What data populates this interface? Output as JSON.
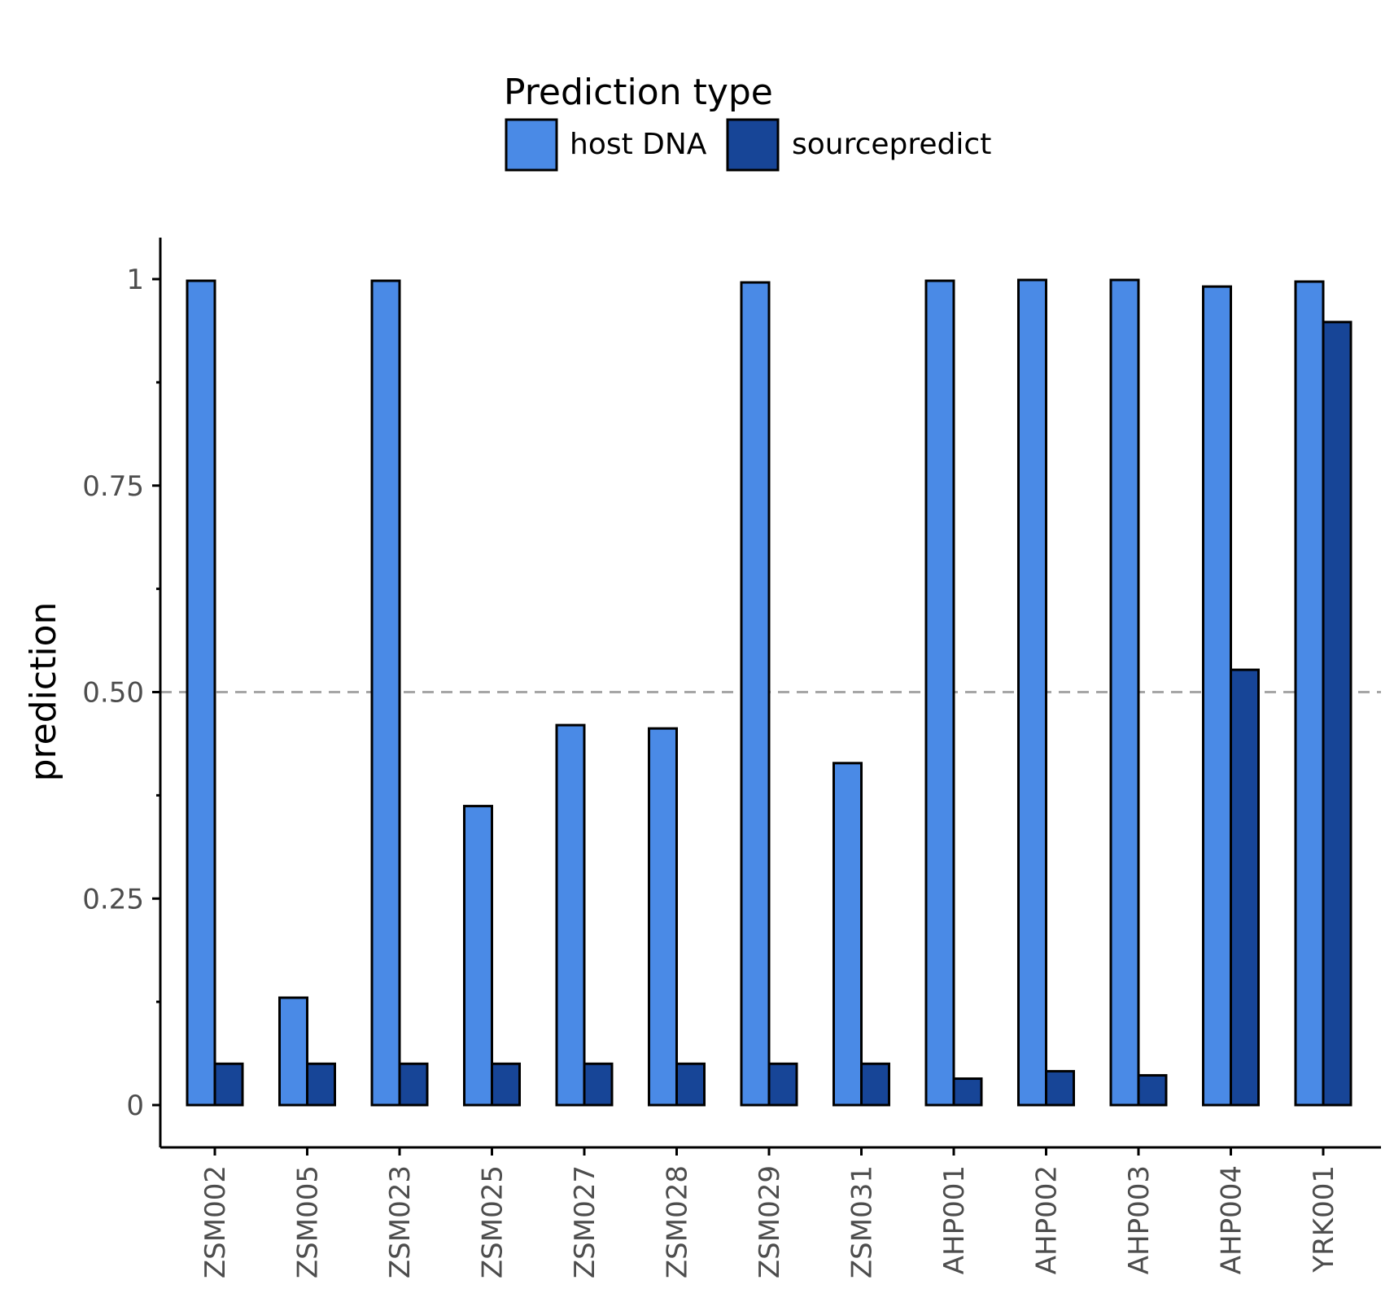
{
  "chart_data": {
    "type": "bar",
    "categories": [
      "ZSM002",
      "ZSM005",
      "ZSM023",
      "ZSM025",
      "ZSM027",
      "ZSM028",
      "ZSM029",
      "ZSM031",
      "AHP001",
      "AHP002",
      "AHP003",
      "AHP004",
      "YRK001"
    ],
    "series": [
      {
        "name": "host DNA",
        "color": "#4a8ae6",
        "values": [
          0.998,
          0.13,
          0.998,
          0.362,
          0.46,
          0.456,
          0.996,
          0.414,
          0.998,
          0.999,
          0.999,
          0.991,
          0.997
        ]
      },
      {
        "name": "sourcepredict",
        "color": "#174597",
        "values": [
          0.05,
          0.05,
          0.05,
          0.05,
          0.05,
          0.05,
          0.05,
          0.05,
          0.032,
          0.041,
          0.036,
          0.527,
          0.948
        ]
      }
    ],
    "legend_title": "Prediction type",
    "legend_position": "top",
    "xlabel": "",
    "ylabel": "prediction",
    "ylim": [
      -0.05,
      1.05
    ],
    "yticks": [
      0,
      0.25,
      0.5,
      0.75,
      1
    ],
    "ytick_labels": [
      "0",
      "0.25",
      "0.50",
      "0.75",
      "1"
    ],
    "reference_line": {
      "y": 0.5,
      "style": "dashed",
      "color": "#a6a6a6"
    },
    "grid": false
  }
}
